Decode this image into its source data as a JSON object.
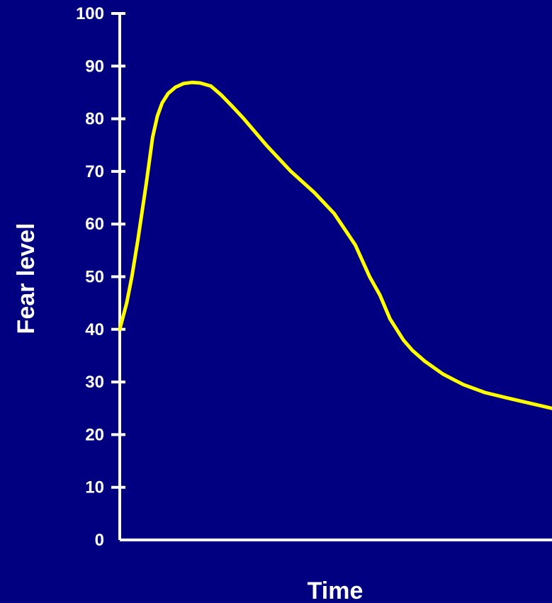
{
  "chart_data": {
    "type": "line",
    "title": "",
    "xlabel": "Time",
    "ylabel": "Fear level",
    "ylim": [
      0,
      100
    ],
    "yticks": [
      0,
      10,
      20,
      30,
      40,
      50,
      60,
      70,
      80,
      90,
      100
    ],
    "grid": false,
    "colors": {
      "background": "#000080",
      "axis": "#ffffff",
      "text": "#ffffff",
      "line": "#ffff00"
    },
    "series": [
      {
        "x": [
          0,
          1.6,
          2.8,
          4.2,
          6.1,
          7.6,
          8.7,
          9.8,
          11.2,
          12.9,
          14.8,
          16.7,
          18.6,
          21.1,
          23.5,
          26.1,
          28.7,
          33.9,
          39.6,
          45.0,
          49.6,
          54.5,
          57.8,
          60.2,
          62.5,
          65.6,
          67.7,
          70.5,
          74.8,
          79.5,
          84.5,
          89.5,
          94.7,
          100
        ],
        "y": [
          40,
          45,
          50,
          57,
          67.5,
          76.5,
          80.5,
          83,
          84.8,
          86,
          86.7,
          86.9,
          86.8,
          86.2,
          84.5,
          82.3,
          80,
          75,
          70,
          66,
          62,
          56,
          50,
          46.5,
          42,
          38,
          36,
          34,
          31.5,
          29.5,
          28,
          27,
          26,
          25
        ]
      }
    ]
  }
}
